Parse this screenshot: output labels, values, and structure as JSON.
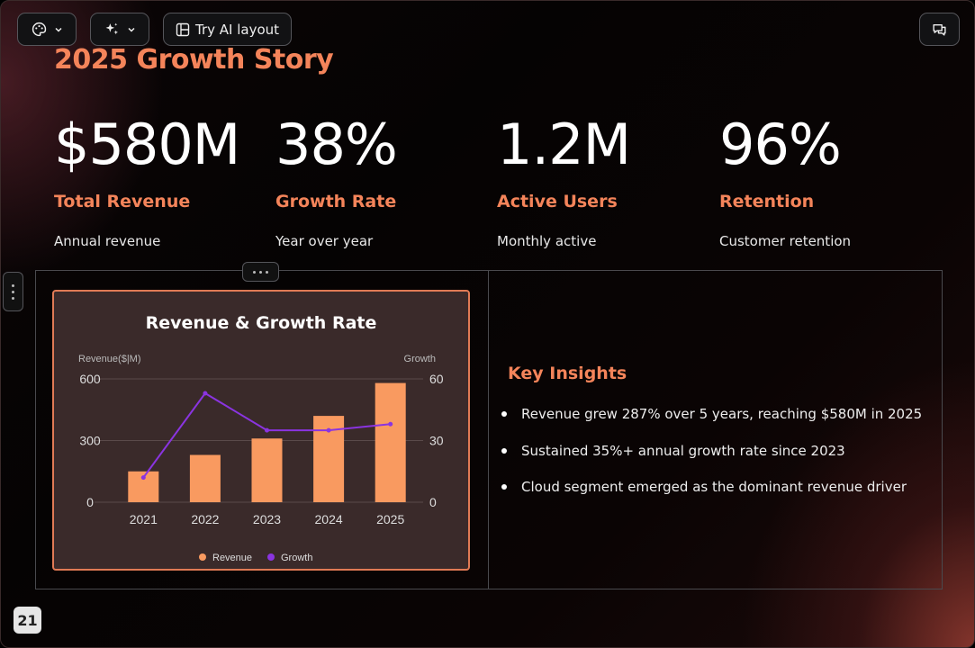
{
  "toolbar": {
    "theme_icon": "palette-icon",
    "ai_icon": "sparkles-icon",
    "layout_icon": "layout-icon",
    "try_ai_layout_label": "Try AI layout",
    "comment_icon": "comment-icon"
  },
  "slide": {
    "title": "2025 Growth Story",
    "page_number": "21",
    "stats": [
      {
        "value": "$580M",
        "label": "Total Revenue",
        "description": "Annual revenue"
      },
      {
        "value": "38%",
        "label": "Growth Rate",
        "description": "Year over year"
      },
      {
        "value": "1.2M",
        "label": "Active Users",
        "description": "Monthly active"
      },
      {
        "value": "96%",
        "label": "Retention",
        "description": "Customer retention"
      }
    ],
    "insights": {
      "title": "Key Insights",
      "items": [
        "Revenue grew 287% over 5 years, reaching $580M in 2025",
        "Sustained 35%+ annual growth rate since 2023",
        "Cloud segment emerged as the dominant revenue driver"
      ]
    }
  },
  "colors": {
    "accent": "#f4845a",
    "bar": "#f99a60",
    "line": "#8a34e0",
    "card_bg": "#3a2a2a"
  },
  "chart_data": {
    "type": "bar",
    "title": "Revenue & Growth Rate",
    "categories": [
      "2021",
      "2022",
      "2023",
      "2024",
      "2025"
    ],
    "series": [
      {
        "name": "Revenue",
        "type": "bar",
        "axis": "left",
        "values": [
          150,
          230,
          310,
          420,
          580
        ]
      },
      {
        "name": "Growth",
        "type": "line",
        "axis": "right",
        "values": [
          12,
          53,
          35,
          35,
          38
        ]
      }
    ],
    "ylabel": "Revenue($|M)",
    "ylabel_right": "Growth",
    "ylim": [
      0,
      600
    ],
    "ylim_right": [
      0,
      60
    ],
    "yticks": [
      "0",
      "300",
      "600"
    ],
    "yticks_right": [
      "0",
      "30",
      "60"
    ],
    "grid": true,
    "legend": "bottom-center"
  }
}
